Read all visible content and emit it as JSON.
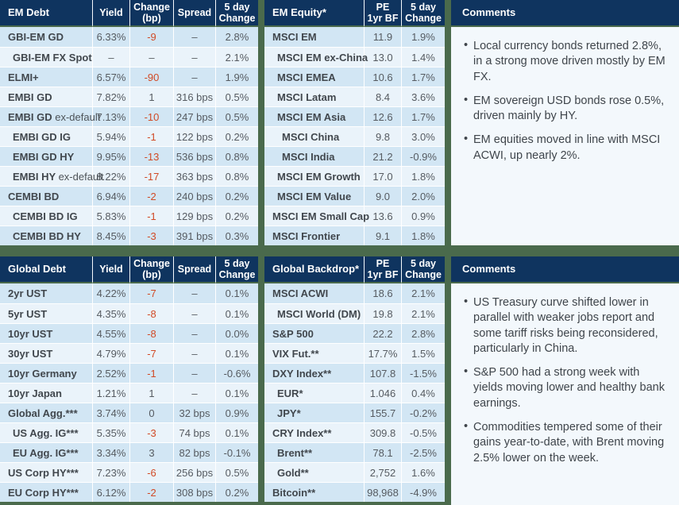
{
  "colors": {
    "header_bg": "#0f345f",
    "page_bg": "#4a6a4c",
    "row_stripe_dark": "#d2e6f4",
    "row_stripe_light": "#eaf3fa",
    "negative_change": "#d14a26",
    "comments_bg": "#f3f8fc"
  },
  "tables": {
    "em_debt": {
      "title": "EM Debt",
      "columns": [
        "Yield",
        "Change\n(bp)",
        "Spread",
        "5 day\nChange"
      ],
      "col_keys": [
        "yield",
        "change-bp",
        "spread",
        "five-day-change"
      ],
      "red_col": 1,
      "rows": [
        {
          "label": "GBI-EM GD",
          "indent": 0,
          "values": [
            "6.33%",
            "-9",
            "–",
            "2.8%"
          ]
        },
        {
          "label": "GBI-EM FX Spot",
          "indent": 1,
          "values": [
            "–",
            "–",
            "–",
            "2.1%"
          ]
        },
        {
          "label": "ELMI+",
          "indent": 0,
          "values": [
            "6.57%",
            "-90",
            "–",
            "1.9%"
          ]
        },
        {
          "label": "EMBI GD",
          "indent": 0,
          "values": [
            "7.82%",
            "1",
            "316 bps",
            "0.5%"
          ]
        },
        {
          "label": "EMBI GD",
          "label_light": "ex-default",
          "indent": 0,
          "values": [
            "7.13%",
            "-10",
            "247 bps",
            "0.5%"
          ]
        },
        {
          "label": "EMBI GD IG",
          "indent": 1,
          "values": [
            "5.94%",
            "-1",
            "122 bps",
            "0.2%"
          ]
        },
        {
          "label": "EMBI GD HY",
          "indent": 1,
          "values": [
            "9.95%",
            "-13",
            "536 bps",
            "0.8%"
          ]
        },
        {
          "label": "EMBI HY",
          "label_light": "ex-default",
          "indent": 1,
          "values": [
            "8.22%",
            "-17",
            "363 bps",
            "0.8%"
          ]
        },
        {
          "label": "CEMBI BD",
          "indent": 0,
          "values": [
            "6.94%",
            "-2",
            "240 bps",
            "0.2%"
          ]
        },
        {
          "label": "CEMBI BD IG",
          "indent": 1,
          "values": [
            "5.83%",
            "-1",
            "129 bps",
            "0.2%"
          ]
        },
        {
          "label": "CEMBI BD HY",
          "indent": 1,
          "values": [
            "8.45%",
            "-3",
            "391 bps",
            "0.3%"
          ]
        }
      ]
    },
    "em_equity": {
      "title": "EM Equity*",
      "columns": [
        "PE\n1yr BF",
        "5 day\nChange"
      ],
      "col_keys": [
        "pe-1yr-bf",
        "five-day-change"
      ],
      "red_col": null,
      "rows": [
        {
          "label": "MSCI EM",
          "indent": 0,
          "values": [
            "11.9",
            "1.9%"
          ]
        },
        {
          "label": "MSCI EM ex-China",
          "indent": 1,
          "values": [
            "13.0",
            "1.4%"
          ]
        },
        {
          "label": "MSCI EMEA",
          "indent": 1,
          "values": [
            "10.6",
            "1.7%"
          ]
        },
        {
          "label": "MSCI Latam",
          "indent": 1,
          "values": [
            "8.4",
            "3.6%"
          ]
        },
        {
          "label": "MSCI EM Asia",
          "indent": 1,
          "values": [
            "12.6",
            "1.7%"
          ]
        },
        {
          "label": "MSCI China",
          "indent": 2,
          "values": [
            "9.8",
            "3.0%"
          ]
        },
        {
          "label": "MSCI India",
          "indent": 2,
          "values": [
            "21.2",
            "-0.9%"
          ]
        },
        {
          "label": "MSCI EM Growth",
          "indent": 1,
          "values": [
            "17.0",
            "1.8%"
          ]
        },
        {
          "label": "MSCI EM Value",
          "indent": 1,
          "values": [
            "9.0",
            "2.0%"
          ]
        },
        {
          "label": "MSCI EM Small Cap",
          "indent": 0,
          "values": [
            "13.6",
            "0.9%"
          ]
        },
        {
          "label": "MSCI Frontier",
          "indent": 0,
          "values": [
            "9.1",
            "1.8%"
          ]
        }
      ]
    },
    "global_debt": {
      "title": "Global Debt",
      "columns": [
        "Yield",
        "Change\n(bp)",
        "Spread",
        "5 day\nChange"
      ],
      "col_keys": [
        "yield",
        "change-bp",
        "spread",
        "five-day-change"
      ],
      "red_col": 1,
      "rows": [
        {
          "label": "2yr UST",
          "indent": 0,
          "values": [
            "4.22%",
            "-7",
            "–",
            "0.1%"
          ]
        },
        {
          "label": "5yr UST",
          "indent": 0,
          "values": [
            "4.35%",
            "-8",
            "–",
            "0.1%"
          ]
        },
        {
          "label": "10yr UST",
          "indent": 0,
          "values": [
            "4.55%",
            "-8",
            "–",
            "0.0%"
          ]
        },
        {
          "label": "30yr UST",
          "indent": 0,
          "values": [
            "4.79%",
            "-7",
            "–",
            "0.1%"
          ]
        },
        {
          "label": "10yr Germany",
          "indent": 0,
          "values": [
            "2.52%",
            "-1",
            "–",
            "-0.6%"
          ]
        },
        {
          "label": "10yr Japan",
          "indent": 0,
          "values": [
            "1.21%",
            "1",
            "–",
            "0.1%"
          ]
        },
        {
          "label": "Global Agg.***",
          "indent": 0,
          "values": [
            "3.74%",
            "0",
            "32 bps",
            "0.9%"
          ]
        },
        {
          "label": "US Agg. IG***",
          "indent": 1,
          "values": [
            "5.35%",
            "-3",
            "74 bps",
            "0.1%"
          ]
        },
        {
          "label": "EU Agg. IG***",
          "indent": 1,
          "values": [
            "3.34%",
            "3",
            "82 bps",
            "-0.1%"
          ]
        },
        {
          "label": "US Corp HY***",
          "indent": 0,
          "values": [
            "7.23%",
            "-6",
            "256 bps",
            "0.5%"
          ]
        },
        {
          "label": "EU Corp HY***",
          "indent": 0,
          "values": [
            "6.12%",
            "-2",
            "308 bps",
            "0.2%"
          ]
        }
      ]
    },
    "global_backdrop": {
      "title": "Global Backdrop*",
      "columns": [
        "PE\n1yr BF",
        "5 day\nChange"
      ],
      "col_keys": [
        "pe-1yr-bf",
        "five-day-change"
      ],
      "red_col": null,
      "rows": [
        {
          "label": "MSCI ACWI",
          "indent": 0,
          "values": [
            "18.6",
            "2.1%"
          ]
        },
        {
          "label": "MSCI World (DM)",
          "indent": 1,
          "values": [
            "19.8",
            "2.1%"
          ]
        },
        {
          "label": "S&P 500",
          "indent": 0,
          "values": [
            "22.2",
            "2.8%"
          ]
        },
        {
          "label": "VIX Fut.**",
          "indent": 0,
          "values": [
            "17.7%",
            "1.5%"
          ]
        },
        {
          "label": "DXY Index**",
          "indent": 0,
          "values": [
            "107.8",
            "-1.5%"
          ]
        },
        {
          "label": "EUR*",
          "indent": 1,
          "values": [
            "1.046",
            "0.4%"
          ]
        },
        {
          "label": "JPY*",
          "indent": 1,
          "values": [
            "155.7",
            "-0.2%"
          ]
        },
        {
          "label": "CRY Index**",
          "indent": 0,
          "values": [
            "309.8",
            "-0.5%"
          ]
        },
        {
          "label": "Brent**",
          "indent": 1,
          "values": [
            "78.1",
            "-2.5%"
          ]
        },
        {
          "label": "Gold**",
          "indent": 1,
          "values": [
            "2,752",
            "1.6%"
          ]
        },
        {
          "label": "Bitcoin**",
          "indent": 0,
          "values": [
            "98,968",
            "-4.9%"
          ]
        }
      ]
    }
  },
  "comments_top": {
    "title": "Comments",
    "items": [
      "Local currency bonds returned 2.8%, in a strong move driven mostly by EM FX.",
      "EM sovereign USD bonds rose 0.5%, driven mainly by HY.",
      "EM equities moved in line with MSCI ACWI, up nearly 2%."
    ]
  },
  "comments_bottom": {
    "title": "Comments",
    "items": [
      "US Treasury curve shifted lower in parallel with weaker jobs report and some tariff risks being reconsidered, particularly in China.",
      "S&P 500 had a strong week with yields moving lower and healthy bank earnings.",
      "Commodities tempered some of their gains year-to-date, with Brent moving 2.5% lower on the week."
    ]
  }
}
